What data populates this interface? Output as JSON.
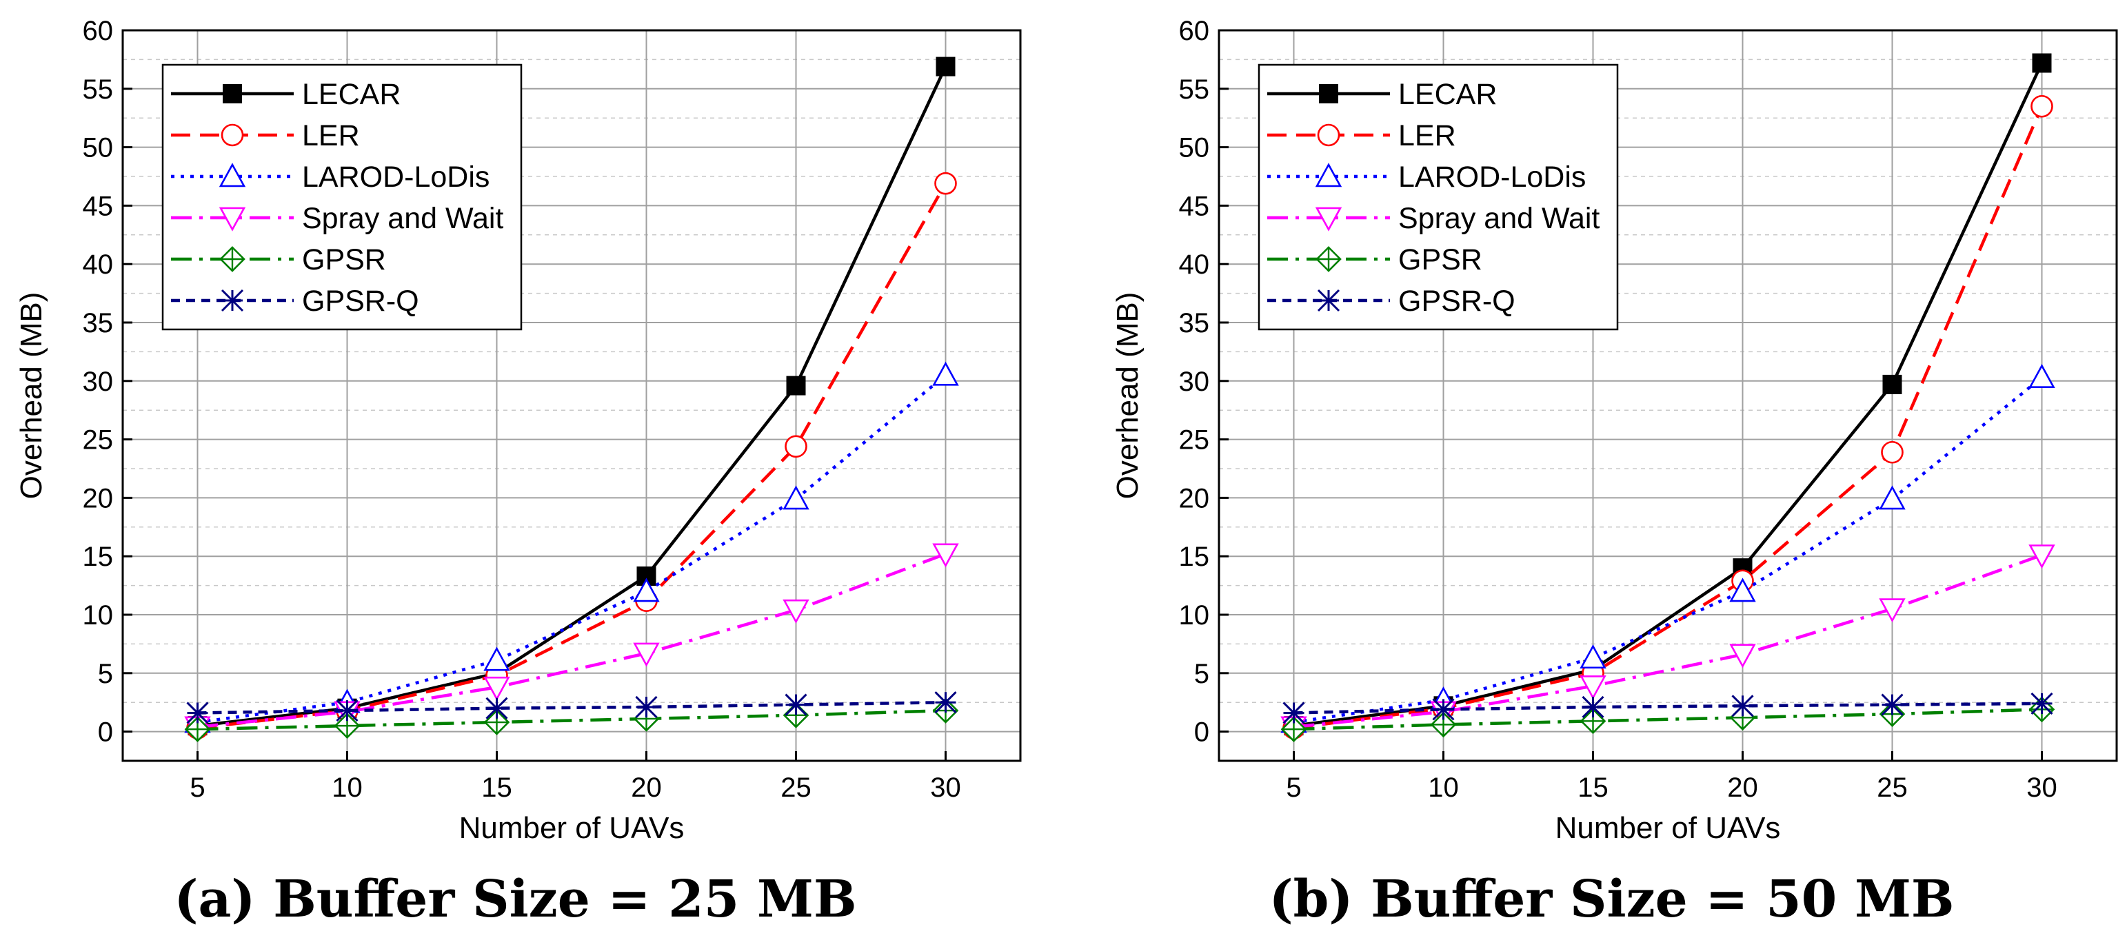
{
  "chart_data": [
    {
      "type": "line",
      "caption": "(a) Buffer Size = 25 MB",
      "xlabel": "Number of UAVs",
      "ylabel": "Overhead (MB)",
      "x": [
        5,
        10,
        15,
        20,
        25,
        30
      ],
      "xticks": [
        "5",
        "10",
        "15",
        "20",
        "25",
        "30"
      ],
      "xlim": [
        2.5,
        32.5
      ],
      "ylim": [
        -2.5,
        60
      ],
      "yticks": [
        "0",
        "5",
        "10",
        "15",
        "20",
        "25",
        "30",
        "35",
        "40",
        "45",
        "50",
        "55",
        "60"
      ],
      "grid": true,
      "legend_position": "top-left",
      "series": [
        {
          "name": "LECAR",
          "values": [
            0.5,
            2.0,
            5.0,
            13.3,
            29.6,
            56.9
          ],
          "color": "#000000",
          "dash": "solid",
          "marker": "filled-square"
        },
        {
          "name": "LER",
          "values": [
            0.3,
            1.8,
            4.8,
            11.2,
            24.4,
            46.9
          ],
          "color": "#ff0000",
          "dash": "dash",
          "marker": "circle"
        },
        {
          "name": "LAROD-LoDis",
          "values": [
            0.8,
            2.5,
            6.1,
            12.0,
            19.9,
            30.5
          ],
          "color": "#0000ff",
          "dash": "dot",
          "marker": "triangle-up"
        },
        {
          "name": "Spray and Wait",
          "values": [
            0.4,
            1.7,
            3.8,
            6.7,
            10.4,
            15.2
          ],
          "color": "#ff00ff",
          "dash": "dashdot",
          "marker": "triangle-down"
        },
        {
          "name": "GPSR",
          "values": [
            0.2,
            0.5,
            0.8,
            1.1,
            1.4,
            1.8
          ],
          "color": "#008000",
          "dash": "dashdot",
          "marker": "circle-plus"
        },
        {
          "name": "GPSR-Q",
          "values": [
            1.6,
            1.8,
            2.0,
            2.1,
            2.3,
            2.5
          ],
          "color": "#000080",
          "dash": "shortdash",
          "marker": "asterisk"
        }
      ]
    },
    {
      "type": "line",
      "caption": "(b) Buffer Size = 50 MB",
      "xlabel": "Number of UAVs",
      "ylabel": "Overhead (MB)",
      "x": [
        5,
        10,
        15,
        20,
        25,
        30
      ],
      "xticks": [
        "5",
        "10",
        "15",
        "20",
        "25",
        "30"
      ],
      "xlim": [
        2.5,
        32.5
      ],
      "ylim": [
        -2.5,
        60
      ],
      "yticks": [
        "0",
        "5",
        "10",
        "15",
        "20",
        "25",
        "30",
        "35",
        "40",
        "45",
        "50",
        "55",
        "60"
      ],
      "grid": true,
      "legend_position": "top-left",
      "series": [
        {
          "name": "LECAR",
          "values": [
            0.5,
            2.2,
            5.3,
            14.0,
            29.7,
            57.2
          ],
          "color": "#000000",
          "dash": "solid",
          "marker": "filled-square"
        },
        {
          "name": "LER",
          "values": [
            0.3,
            2.0,
            5.0,
            12.9,
            23.9,
            53.5
          ],
          "color": "#ff0000",
          "dash": "dash",
          "marker": "circle"
        },
        {
          "name": "LAROD-LoDis",
          "values": [
            0.8,
            2.7,
            6.3,
            12.0,
            19.9,
            30.3
          ],
          "color": "#0000ff",
          "dash": "dot",
          "marker": "triangle-up"
        },
        {
          "name": "Spray and Wait",
          "values": [
            0.4,
            1.7,
            3.9,
            6.6,
            10.5,
            15.1
          ],
          "color": "#ff00ff",
          "dash": "dashdot",
          "marker": "triangle-down"
        },
        {
          "name": "GPSR",
          "values": [
            0.2,
            0.6,
            0.9,
            1.2,
            1.5,
            1.9
          ],
          "color": "#008000",
          "dash": "dashdot",
          "marker": "circle-plus"
        },
        {
          "name": "GPSR-Q",
          "values": [
            1.6,
            1.9,
            2.1,
            2.2,
            2.3,
            2.4
          ],
          "color": "#000080",
          "dash": "shortdash",
          "marker": "asterisk"
        }
      ]
    }
  ]
}
